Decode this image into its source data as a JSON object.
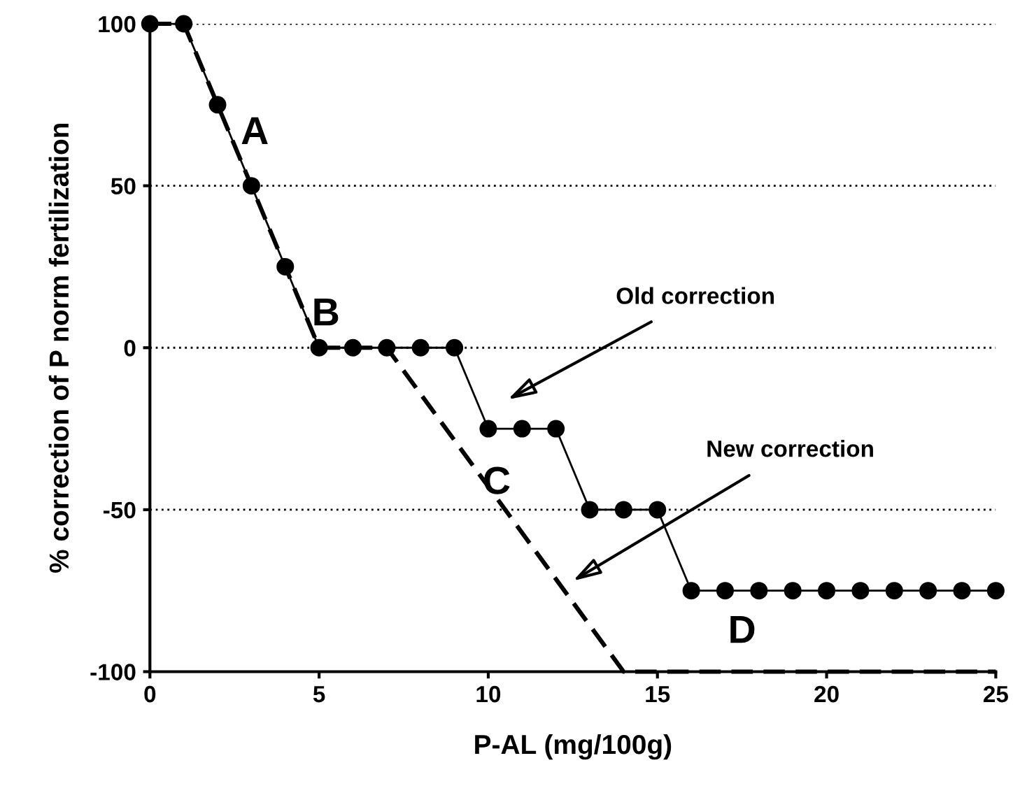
{
  "chart_data": {
    "type": "line",
    "xlabel": "P-AL (mg/100g)",
    "ylabel": "% correction of P norm fertilization",
    "series": [
      {
        "color": "#000000",
        "marker": "circle",
        "line_style": "solid",
        "x": [
          0,
          1,
          2,
          3,
          4,
          5,
          6,
          7,
          8,
          9,
          10,
          11,
          12,
          13,
          14,
          15,
          16,
          17,
          18,
          19,
          20,
          21,
          22,
          23,
          24,
          25
        ],
        "values": [
          100,
          100,
          75,
          50,
          25,
          0,
          0,
          0,
          0,
          0,
          -25,
          -25,
          -25,
          -50,
          -50,
          -50,
          -75,
          -75,
          -75,
          -75,
          -75,
          -75,
          -75,
          -75,
          -75,
          -75
        ]
      },
      {
        "color": "#000000",
        "marker": "none",
        "line_style": "dashed",
        "x": [
          0,
          1,
          5,
          7,
          14,
          25
        ],
        "values": [
          100,
          100,
          0,
          0,
          -100,
          -100
        ]
      }
    ],
    "xlim": [
      0,
      25
    ],
    "xticks": [
      0,
      5,
      10,
      15,
      20,
      25
    ],
    "ylim": [
      -100,
      100
    ],
    "yticks": [
      -100,
      -50,
      0,
      50,
      100
    ],
    "grid": "y",
    "annotations": [
      "A",
      "B",
      "C",
      "D",
      "Old correction",
      "New correction"
    ]
  }
}
